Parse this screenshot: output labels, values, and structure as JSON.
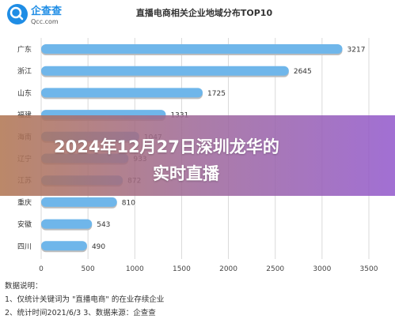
{
  "logo": {
    "name": "企查查",
    "domain": "Qcc.com"
  },
  "chart_data": {
    "type": "bar",
    "orientation": "horizontal",
    "title": "直播电商相关企业地域分布TOP10",
    "categories": [
      "广东",
      "浙江",
      "山东",
      "福建",
      "海南",
      "辽宁",
      "江苏",
      "重庆",
      "安徽",
      "四川"
    ],
    "values": [
      3217,
      2645,
      1725,
      1331,
      1047,
      933,
      872,
      810,
      543,
      490
    ],
    "value_labels": [
      "3217",
      "2645",
      "1725",
      "1331",
      "1047",
      "933",
      "872",
      "810",
      "543",
      "490"
    ],
    "xticks": [
      "0",
      "500",
      "1000",
      "1500",
      "2000",
      "2500",
      "3000",
      "3500"
    ],
    "xlim": [
      0,
      3500
    ],
    "grid": "vertical",
    "bar_color": "#6fb6ea"
  },
  "notes": {
    "title": "数据说明：",
    "line1": "1、仅统计关键词为 \"直播电商\" 的在业存续企业",
    "line2": "2、统计时间2021/6/3   3、数据来源：企查查"
  },
  "overlay": {
    "line1": "2024年12月27日深圳龙华的",
    "line2": "实时直播"
  }
}
